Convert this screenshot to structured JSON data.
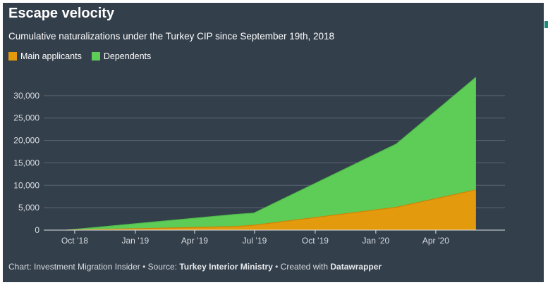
{
  "header": {
    "title": "Escape velocity",
    "subtitle": "Cumulative naturalizations under the Turkey CIP since September 19th, 2018"
  },
  "footer": {
    "prefix": "Chart: Investment Migration Insider • Source: ",
    "source": "Turkey Interior Ministry",
    "mid": " • Created with ",
    "tool": "Datawrapper"
  },
  "colors": {
    "background": "#333f4b",
    "main_applicants": "#e39a0c",
    "dependents": "#5ecd57"
  },
  "chart_data": {
    "type": "area",
    "stacked": true,
    "title": "Escape velocity",
    "subtitle": "Cumulative naturalizations under the Turkey CIP since September 19th, 2018",
    "xlabel": "",
    "ylabel": "",
    "x": [
      "2018-09-19",
      "2019-06-01",
      "2019-06-30",
      "2020-02-01",
      "2020-06-01"
    ],
    "series": [
      {
        "name": "Main applicants",
        "color": "#e39a0c",
        "values": [
          0,
          800,
          1100,
          5100,
          9000
        ]
      },
      {
        "name": "Dependents",
        "color": "#5ecd57",
        "values": [
          0,
          2700,
          2700,
          14100,
          25100
        ]
      }
    ],
    "ylim": [
      0,
      35000
    ],
    "yticks": [
      {
        "value": 0,
        "label": "0"
      },
      {
        "value": 5000,
        "label": "5,000"
      },
      {
        "value": 10000,
        "label": "10,000"
      },
      {
        "value": 15000,
        "label": "15,000"
      },
      {
        "value": 20000,
        "label": "20,000"
      },
      {
        "value": 25000,
        "label": "25,000"
      },
      {
        "value": 30000,
        "label": "30,000"
      }
    ],
    "xticks": [
      {
        "date": "2018-10-01",
        "label": "Oct ’18"
      },
      {
        "date": "2019-01-01",
        "label": "Jan ’19"
      },
      {
        "date": "2019-04-01",
        "label": "Apr ’19"
      },
      {
        "date": "2019-07-01",
        "label": "Jul ’19"
      },
      {
        "date": "2019-10-01",
        "label": "Oct ’19"
      },
      {
        "date": "2020-01-01",
        "label": "Jan ’20"
      },
      {
        "date": "2020-04-01",
        "label": "Apr ’20"
      }
    ],
    "grid": true,
    "legend": "top-left"
  }
}
